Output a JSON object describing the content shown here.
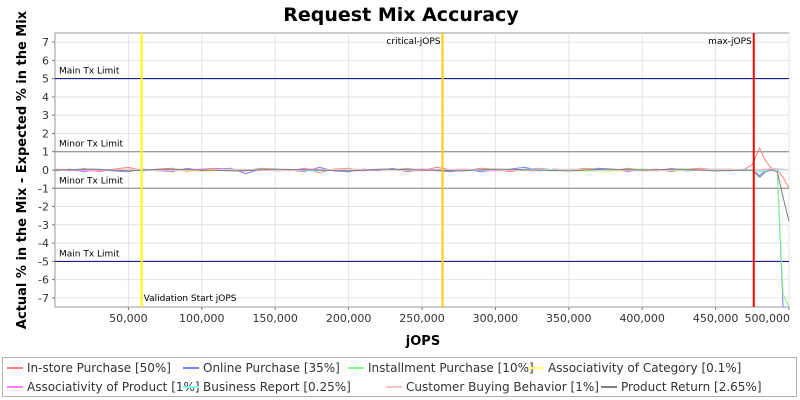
{
  "chart_data": {
    "type": "line",
    "title": "Request Mix Accuracy",
    "xlabel": "jOPS",
    "ylabel": "Actual % in the Mix - Expected % in the Mix",
    "xlim": [
      0,
      500000
    ],
    "ylim": [
      -7.5,
      7.5
    ],
    "x_ticks": [
      50000,
      100000,
      150000,
      200000,
      250000,
      300000,
      350000,
      400000,
      450000,
      500000
    ],
    "x_tick_labels": [
      "50,000",
      "100,000",
      "150,000",
      "200,000",
      "250,000",
      "300,000",
      "350,000",
      "400,000",
      "450,000",
      "500,000"
    ],
    "y_ticks": [
      -7,
      -6,
      -5,
      -4,
      -3,
      -2,
      -1,
      0,
      1,
      2,
      3,
      4,
      5,
      6,
      7
    ],
    "y_tick_labels": [
      "-7",
      "-6",
      "-5",
      "-4",
      "-3",
      "-2",
      "-1",
      "0",
      "1",
      "2",
      "3",
      "4",
      "5",
      "6",
      "7"
    ],
    "grid": true,
    "legend_position": "bottom",
    "horizontal_lines": [
      {
        "label": "Main Tx Limit",
        "y": 5,
        "color": "#000080"
      },
      {
        "label": "Minor Tx Limit",
        "y": 1,
        "color": "#808080"
      },
      {
        "label": "Minor Tx Limit",
        "y": -1,
        "color": "#808080"
      },
      {
        "label": "Main Tx Limit",
        "y": -5,
        "color": "#000080"
      }
    ],
    "vertical_markers": [
      {
        "label": "Validation Start jOPS",
        "x": 59000,
        "color": "#ffff00"
      },
      {
        "label": "critical-jOPS",
        "x": 264000,
        "color": "#ffcc00"
      },
      {
        "label": "max-jOPS",
        "x": 476000,
        "color": "#ff0000"
      }
    ],
    "series": [
      {
        "name": "In-store Purchase [50%]",
        "color": "#ff8080",
        "x": [
          0,
          10000,
          20000,
          30000,
          40000,
          50000,
          60000,
          70000,
          80000,
          90000,
          100000,
          110000,
          120000,
          130000,
          140000,
          150000,
          160000,
          170000,
          180000,
          190000,
          200000,
          210000,
          220000,
          230000,
          240000,
          250000,
          260000,
          270000,
          280000,
          290000,
          300000,
          310000,
          320000,
          330000,
          340000,
          350000,
          360000,
          370000,
          380000,
          390000,
          400000,
          410000,
          420000,
          430000,
          440000,
          450000,
          460000,
          470000,
          475000,
          480000,
          484000,
          488000,
          492000,
          496000,
          500000
        ],
        "y": [
          0.05,
          -0.05,
          0.1,
          -0.1,
          0.05,
          0.15,
          -0.05,
          0.05,
          0.1,
          -0.1,
          0.05,
          0.1,
          0.0,
          -0.05,
          0.1,
          0.05,
          -0.05,
          0.1,
          -0.15,
          0.05,
          0.1,
          -0.05,
          0.05,
          0.0,
          0.1,
          -0.05,
          0.15,
          0.0,
          -0.05,
          0.1,
          0.05,
          -0.1,
          0.05,
          0.1,
          0.0,
          -0.05,
          0.1,
          0.05,
          -0.05,
          0.1,
          0.0,
          0.05,
          -0.1,
          0.05,
          0.1,
          0.0,
          -0.05,
          0.05,
          0.3,
          1.2,
          0.5,
          0.1,
          0.0,
          -0.4,
          -1.0
        ]
      },
      {
        "name": "Online Purchase [35%]",
        "color": "#8080ff",
        "x": [
          0,
          10000,
          20000,
          30000,
          40000,
          50000,
          60000,
          70000,
          80000,
          90000,
          100000,
          110000,
          120000,
          130000,
          140000,
          150000,
          160000,
          170000,
          180000,
          190000,
          200000,
          210000,
          220000,
          230000,
          240000,
          250000,
          260000,
          270000,
          280000,
          290000,
          300000,
          310000,
          320000,
          330000,
          340000,
          350000,
          360000,
          370000,
          380000,
          390000,
          400000,
          410000,
          420000,
          430000,
          440000,
          450000,
          460000,
          470000,
          475000,
          480000,
          484000,
          488000,
          492000,
          496000,
          500000
        ],
        "y": [
          -0.05,
          0.05,
          -0.1,
          0.05,
          -0.05,
          -0.1,
          0.05,
          -0.05,
          -0.1,
          0.1,
          -0.05,
          0.05,
          0.1,
          -0.2,
          0.05,
          -0.05,
          0.0,
          -0.1,
          0.15,
          -0.05,
          -0.1,
          0.05,
          -0.05,
          0.1,
          -0.1,
          0.0,
          -0.05,
          -0.1,
          0.05,
          -0.1,
          0.0,
          0.05,
          0.15,
          -0.05,
          0.05,
          0.0,
          -0.05,
          0.1,
          0.05,
          -0.1,
          0.05,
          -0.05,
          0.1,
          -0.05,
          0.0,
          -0.05,
          0.05,
          -0.05,
          0.0,
          -0.3,
          0.0,
          0.1,
          0.0,
          -7.5,
          -7.5
        ]
      },
      {
        "name": "Installment Purchase [10%]",
        "color": "#80ff80",
        "x": [
          0,
          20000,
          40000,
          60000,
          80000,
          100000,
          120000,
          140000,
          160000,
          180000,
          200000,
          220000,
          240000,
          260000,
          280000,
          300000,
          320000,
          340000,
          360000,
          380000,
          400000,
          420000,
          440000,
          460000,
          475000,
          480000,
          486000,
          492000,
          496000,
          500000
        ],
        "y": [
          0.0,
          0.05,
          0.0,
          -0.05,
          0.05,
          0.0,
          -0.05,
          0.05,
          0.0,
          0.05,
          -0.05,
          0.0,
          0.05,
          -0.05,
          0.0,
          0.05,
          0.0,
          -0.05,
          0.05,
          0.0,
          0.05,
          -0.05,
          0.0,
          0.05,
          0.0,
          -0.1,
          0.05,
          0.0,
          -6.8,
          -7.5
        ]
      },
      {
        "name": "Associativity of Category [0.1%]",
        "color": "#ffff80",
        "x": [
          0,
          25000,
          50000,
          75000,
          100000,
          125000,
          150000,
          175000,
          200000,
          225000,
          250000,
          275000,
          300000,
          325000,
          350000,
          375000,
          400000,
          425000,
          450000,
          475000,
          490000,
          500000
        ],
        "y": [
          0.0,
          0.05,
          -0.05,
          0.0,
          -0.1,
          0.05,
          0.0,
          -0.05,
          0.05,
          0.0,
          -0.05,
          0.0,
          0.05,
          0.0,
          -0.05,
          -0.1,
          0.0,
          0.05,
          0.0,
          -0.05,
          0.0,
          0.0
        ]
      },
      {
        "name": "Associativity of Product [1%]",
        "color": "#ff80ff",
        "x": [
          0,
          25000,
          50000,
          75000,
          100000,
          125000,
          150000,
          175000,
          200000,
          225000,
          250000,
          275000,
          300000,
          325000,
          350000,
          375000,
          400000,
          425000,
          450000,
          475000,
          490000,
          500000
        ],
        "y": [
          0.0,
          -0.05,
          0.05,
          0.0,
          0.05,
          -0.05,
          0.0,
          0.05,
          -0.05,
          0.0,
          0.05,
          0.0,
          -0.05,
          0.05,
          0.0,
          0.05,
          -0.05,
          0.0,
          0.05,
          0.0,
          0.05,
          0.0
        ]
      },
      {
        "name": "Business Report [0.25%]",
        "color": "#80ffff",
        "x": [
          0,
          25000,
          50000,
          75000,
          100000,
          125000,
          150000,
          175000,
          200000,
          225000,
          250000,
          275000,
          300000,
          325000,
          350000,
          375000,
          400000,
          425000,
          450000,
          475000,
          490000,
          500000
        ],
        "y": [
          0.0,
          0.05,
          0.0,
          -0.05,
          0.0,
          0.05,
          0.0,
          -0.05,
          0.0,
          0.05,
          0.0,
          -0.05,
          0.0,
          0.05,
          0.0,
          -0.05,
          0.0,
          0.05,
          0.0,
          -0.05,
          0.0,
          0.0
        ]
      },
      {
        "name": "Customer Buying Behavior [1%]",
        "color": "#ffc0c0",
        "x": [
          0,
          25000,
          50000,
          75000,
          100000,
          125000,
          150000,
          175000,
          200000,
          225000,
          250000,
          275000,
          300000,
          325000,
          350000,
          375000,
          400000,
          425000,
          450000,
          475000,
          490000,
          500000
        ],
        "y": [
          0.05,
          0.0,
          0.05,
          -0.05,
          0.0,
          0.05,
          -0.05,
          0.0,
          0.05,
          0.0,
          -0.05,
          0.05,
          0.0,
          -0.05,
          0.05,
          0.0,
          -0.05,
          0.0,
          0.05,
          0.0,
          0.1,
          0.0
        ]
      },
      {
        "name": "Product Return [2.65%]",
        "color": "#808080",
        "x": [
          0,
          25000,
          50000,
          75000,
          100000,
          125000,
          150000,
          175000,
          200000,
          225000,
          250000,
          275000,
          300000,
          325000,
          350000,
          375000,
          400000,
          425000,
          450000,
          475000,
          480000,
          484000,
          488000,
          492000,
          496000,
          500000
        ],
        "y": [
          0.0,
          0.05,
          -0.05,
          0.05,
          0.0,
          -0.05,
          0.05,
          0.0,
          -0.05,
          0.05,
          0.0,
          -0.05,
          0.05,
          0.0,
          -0.05,
          0.05,
          0.0,
          0.05,
          -0.05,
          0.0,
          -0.4,
          -0.1,
          0.0,
          -0.1,
          -1.5,
          -2.8
        ]
      }
    ]
  }
}
